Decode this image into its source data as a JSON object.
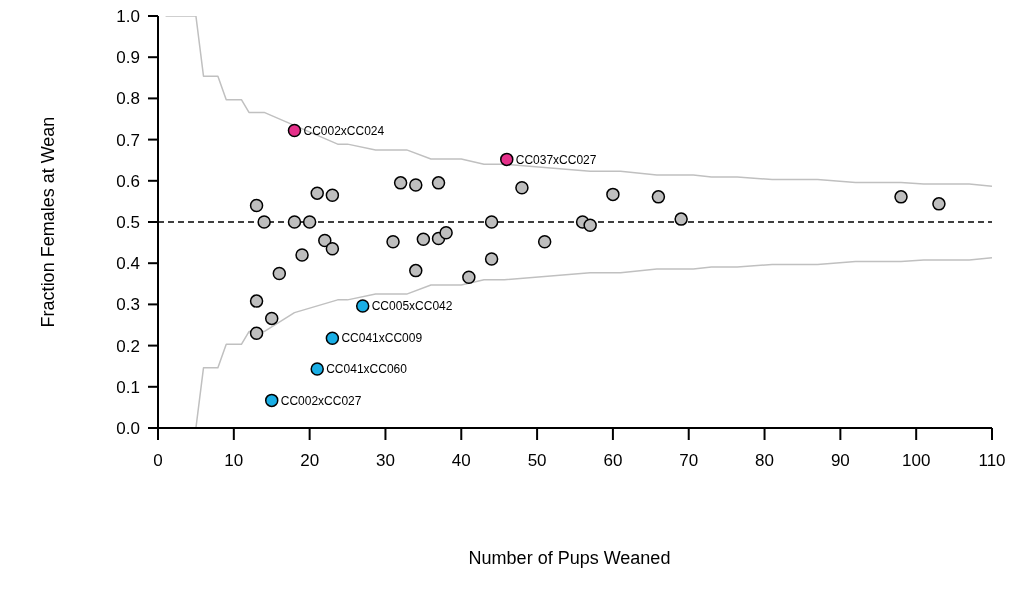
{
  "chart_data": {
    "type": "scatter",
    "xlabel": "Number of Pups Weaned",
    "ylabel": "Fraction Females at Wean",
    "xlim": [
      0,
      110
    ],
    "ylim": [
      0,
      1
    ],
    "xticks": [
      0,
      10,
      20,
      30,
      40,
      50,
      60,
      70,
      80,
      90,
      100,
      110
    ],
    "yticks": [
      {
        "value": 0,
        "label": "0.0"
      },
      {
        "value": 0.1,
        "label": "0.1"
      },
      {
        "value": 0.2,
        "label": "0.2"
      },
      {
        "value": 0.3,
        "label": "0.3"
      },
      {
        "value": 0.4,
        "label": "0.4"
      },
      {
        "value": 0.5,
        "label": "0.5"
      },
      {
        "value": 0.6,
        "label": "0.6"
      },
      {
        "value": 0.7,
        "label": "0.7"
      },
      {
        "value": 0.8,
        "label": "0.8"
      },
      {
        "value": 0.9,
        "label": "0.9"
      },
      {
        "value": 1,
        "label": "1.0"
      }
    ],
    "grid": false,
    "legend": false,
    "marker": "circle",
    "ref_lines": [
      {
        "axis": "y",
        "value": 0.5,
        "color": "#000000",
        "line_style": "dashed"
      }
    ],
    "series": [
      {
        "type": "line",
        "color": "#c0c0c0",
        "line_style": "solid",
        "marker": "none",
        "x": [
          1,
          5,
          6,
          7.9,
          9,
          11,
          12,
          14,
          23.7,
          25,
          28.7,
          32.8,
          36,
          40,
          43,
          45.7,
          57,
          61,
          65.8,
          70.6,
          73,
          76.4,
          81,
          87,
          92,
          98,
          101,
          107,
          110
        ],
        "values": [
          1,
          1,
          0.854,
          0.854,
          0.797,
          0.797,
          0.766,
          0.766,
          0.689,
          0.689,
          0.675,
          0.675,
          0.653,
          0.653,
          0.64,
          0.64,
          0.623,
          0.623,
          0.614,
          0.614,
          0.609,
          0.609,
          0.603,
          0.603,
          0.596,
          0.596,
          0.592,
          0.592,
          0.587
        ]
      },
      {
        "type": "line",
        "color": "#c0c0c0",
        "line_style": "solid",
        "marker": "none",
        "x": [
          1,
          5,
          6,
          7.9,
          9,
          11,
          12,
          14,
          18,
          23.7,
          25,
          28.7,
          32.8,
          36,
          40,
          43,
          45.7,
          57,
          61,
          65.8,
          70.6,
          73,
          76.4,
          81,
          87,
          92,
          98,
          101,
          107,
          110
        ],
        "values": [
          0,
          0,
          0.146,
          0.146,
          0.203,
          0.203,
          0.234,
          0.234,
          0.28,
          0.311,
          0.311,
          0.325,
          0.325,
          0.347,
          0.347,
          0.36,
          0.36,
          0.377,
          0.377,
          0.386,
          0.386,
          0.391,
          0.391,
          0.397,
          0.397,
          0.404,
          0.404,
          0.408,
          0.408,
          0.413
        ]
      },
      {
        "type": "scatter",
        "color": "#bebebe",
        "x": [
          13,
          14,
          13,
          13,
          15,
          16,
          18,
          19,
          20,
          21,
          22,
          23,
          23,
          31,
          32,
          34,
          34,
          35,
          37,
          37,
          38,
          41,
          44,
          44,
          48,
          51,
          56,
          57,
          60,
          66,
          69,
          98,
          103
        ],
        "values": [
          0.54,
          0.5,
          0.308,
          0.23,
          0.266,
          0.375,
          0.5,
          0.42,
          0.5,
          0.57,
          0.455,
          0.565,
          0.435,
          0.452,
          0.595,
          0.59,
          0.382,
          0.458,
          0.595,
          0.46,
          0.474,
          0.366,
          0.41,
          0.5,
          0.583,
          0.452,
          0.5,
          0.492,
          0.567,
          0.561,
          0.507,
          0.561,
          0.544
        ]
      },
      {
        "type": "scatter",
        "color": "#e5308a",
        "x": [
          18,
          46
        ],
        "values": [
          0.722,
          0.652
        ]
      },
      {
        "type": "scatter",
        "color": "#1aaee5",
        "x": [
          27,
          23,
          21,
          15
        ],
        "values": [
          0.296,
          0.218,
          0.143,
          0.067
        ]
      }
    ],
    "annotations": [
      {
        "text": "CC002xCC024",
        "x": 18,
        "y": 0.722
      },
      {
        "text": "CC037xCC027",
        "x": 46,
        "y": 0.652
      },
      {
        "text": "CC005xCC042",
        "x": 27,
        "y": 0.296
      },
      {
        "text": "CC041xCC009",
        "x": 23,
        "y": 0.218
      },
      {
        "text": "CC041xCC060",
        "x": 21,
        "y": 0.143
      },
      {
        "text": "CC002xCC027",
        "x": 15,
        "y": 0.067
      }
    ]
  }
}
